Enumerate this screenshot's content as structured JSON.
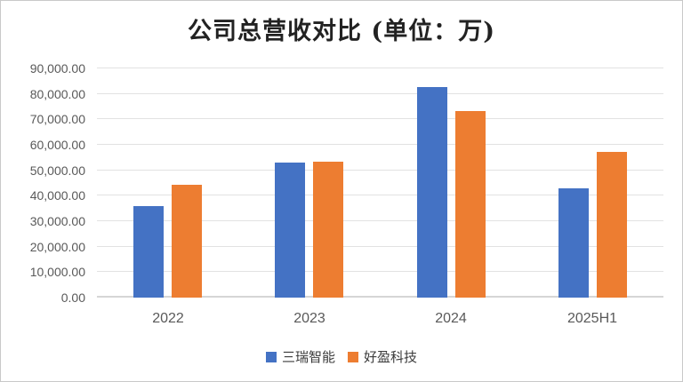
{
  "chart_data": {
    "type": "bar",
    "title": "公司总营收对比 (单位：万)",
    "categories": [
      "2022",
      "2023",
      "2024",
      "2025H1"
    ],
    "series": [
      {
        "name": "三瑞智能",
        "color": "#4472C4",
        "values": [
          35900,
          52900,
          82600,
          43000
        ]
      },
      {
        "name": "好盈科技",
        "color": "#ED7D31",
        "values": [
          44300,
          53400,
          73100,
          57200
        ]
      }
    ],
    "xlabel": "",
    "ylabel": "",
    "ylim": [
      0,
      90000
    ],
    "y_ticks": [
      "0.00",
      "10,000.00",
      "20,000.00",
      "30,000.00",
      "40,000.00",
      "50,000.00",
      "60,000.00",
      "70,000.00",
      "80,000.00",
      "90,000.00"
    ],
    "grid": true,
    "legend_position": "bottom"
  },
  "colors": {
    "gridline": "#e2e2e2",
    "baseline": "#d6d6d6",
    "axis_text": "#595959",
    "title_text": "#222222",
    "frame_border": "#c9c9c9"
  }
}
